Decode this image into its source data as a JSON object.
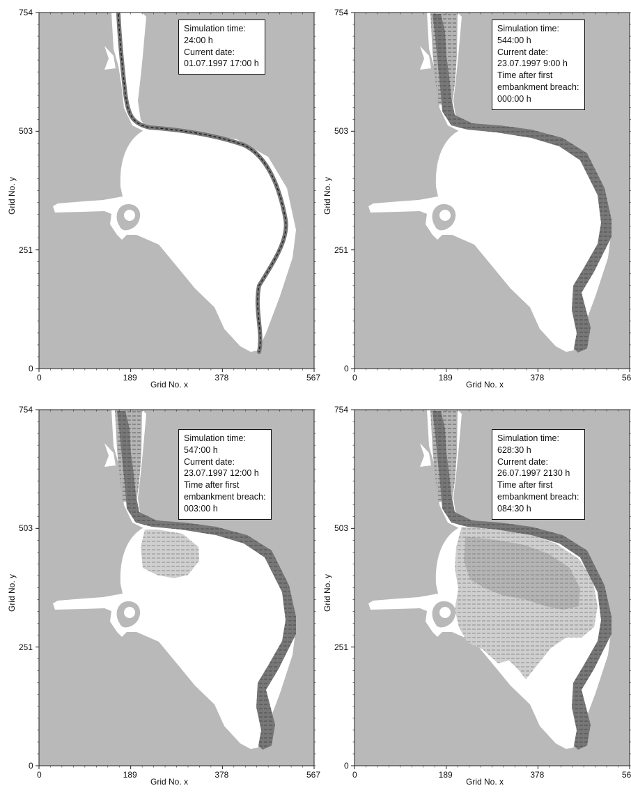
{
  "axis": {
    "xlabel": "Grid No. x",
    "ylabel": "Grid No. y",
    "xticks": [
      "0",
      "189",
      "378",
      "567"
    ],
    "yticks": [
      "0",
      "251",
      "503",
      "754"
    ]
  },
  "colors": {
    "land": "#b9b9b9",
    "dry_area": "#ffffff",
    "river": "#777777",
    "flooded_light": "#cfcfcf",
    "flooded_mid": "#b4b4b4",
    "frame": "#222222"
  },
  "panels": [
    {
      "stage": "initial",
      "lines": [
        "Simulation time:",
        "24:00 h",
        "Current date:",
        "01.07.1997  17:00 h"
      ]
    },
    {
      "stage": "breach",
      "lines": [
        "Simulation time:",
        "544:00 h",
        "Current date:",
        "23.07.1997  9:00 h",
        "Time after first",
        "embankment breach:",
        "000:00 h"
      ]
    },
    {
      "stage": "early_flood",
      "lines": [
        "Simulation time:",
        "547:00 h",
        "Current date:",
        "23.07.1997  12:00 h",
        "Time after first",
        "embankment breach:",
        "003:00 h"
      ]
    },
    {
      "stage": "late_flood",
      "lines": [
        "Simulation time:",
        "628:30 h",
        "Current date:",
        "26.07.1997  2130 h",
        "Time after first",
        "embankment breach:",
        "084:30 h"
      ]
    }
  ]
}
